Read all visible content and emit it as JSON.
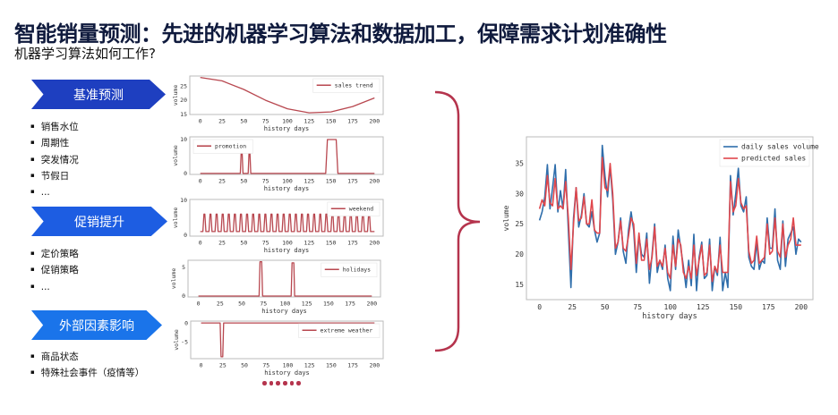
{
  "header": {
    "title": "智能销量预测：先进的机器学习算法和数据加工，保障需求计划准确性",
    "subtitle": "机器学习算法如何工作?"
  },
  "sections": [
    {
      "label": "基准预测",
      "color": "#1e3fc0",
      "bullets": [
        "销售水位",
        "周期性",
        "突发情况",
        "节假日",
        "..."
      ]
    },
    {
      "label": "促销提升",
      "color": "#1d5de2",
      "bullets": [
        "定价策略",
        "促销策略",
        "..."
      ]
    },
    {
      "label": "外部因素影响",
      "color": "#1a74ea",
      "bullets": [
        "商品状态",
        "特殊社会事件（疫情等）"
      ]
    }
  ],
  "accent_color": "#b5344d",
  "pagination_dots": 6,
  "chart_data": [
    {
      "type": "line",
      "xlabel": "history days",
      "ylabel": "volume",
      "xlim": [
        -12,
        210
      ],
      "ylim": [
        15,
        28.5
      ],
      "xticks": [
        0,
        25,
        50,
        75,
        100,
        125,
        150,
        175,
        200
      ],
      "yticks": [
        15,
        20,
        25
      ],
      "legend": "top-right",
      "grid": false,
      "series": [
        {
          "name": "sales trend",
          "color": "#b8474f",
          "x": [
            0,
            25,
            50,
            75,
            100,
            125,
            150,
            175,
            200
          ],
          "y": [
            28,
            26.8,
            23.8,
            20,
            17,
            15.6,
            15.9,
            17.8,
            20.8
          ]
        }
      ]
    },
    {
      "type": "line",
      "xlabel": "history days",
      "ylabel": "volume",
      "xlim": [
        -12,
        210
      ],
      "ylim": [
        -0.3,
        10.8
      ],
      "xticks": [
        0,
        25,
        50,
        75,
        100,
        125,
        150,
        175,
        200
      ],
      "yticks": [
        0,
        10
      ],
      "legend": "top-left",
      "grid": false,
      "series": [
        {
          "name": "promotion",
          "color": "#b8474f",
          "x": [
            0,
            46,
            47,
            48,
            49,
            55,
            56,
            57,
            58,
            144,
            146,
            156,
            158,
            200
          ],
          "y": [
            0,
            0,
            6.5,
            6.5,
            0,
            0,
            6.5,
            6.5,
            0,
            0,
            10,
            10,
            0,
            0
          ]
        }
      ]
    },
    {
      "type": "line",
      "xlabel": "history days",
      "ylabel": "volume",
      "xlim": [
        -12,
        210
      ],
      "ylim": [
        -0.3,
        10.2
      ],
      "xticks": [
        0,
        25,
        50,
        75,
        100,
        125,
        150,
        175,
        200
      ],
      "yticks": [
        0,
        10
      ],
      "legend": "top-right",
      "grid": false,
      "series": [
        {
          "name": "weekend",
          "color": "#b8474f",
          "period_days": 7,
          "first_peak_day": 5,
          "peak": 6,
          "base": 1,
          "x_end": 200
        }
      ]
    },
    {
      "type": "line",
      "xlabel": "history days",
      "ylabel": "volume",
      "xlim": [
        -12,
        210
      ],
      "ylim": [
        -0.15,
        6.25
      ],
      "xticks": [
        0,
        25,
        50,
        75,
        100,
        125,
        150,
        175,
        200
      ],
      "yticks": [
        0,
        5
      ],
      "legend": "top-right",
      "grid": false,
      "series": [
        {
          "name": "holidays",
          "color": "#b8474f",
          "x": [
            0,
            70,
            71,
            73,
            74,
            107,
            108,
            110,
            111,
            200
          ],
          "y": [
            0,
            0,
            6,
            6,
            0,
            0,
            5.8,
            5.8,
            0,
            0
          ]
        }
      ]
    },
    {
      "type": "line",
      "xlabel": "history days",
      "ylabel": "volume",
      "xlim": [
        -12,
        210
      ],
      "ylim": [
        -9.5,
        0.5
      ],
      "xticks": [
        0,
        25,
        50,
        75,
        100,
        125,
        150,
        175,
        200
      ],
      "yticks": [
        0,
        -5
      ],
      "legend": "top-right",
      "grid": false,
      "series": [
        {
          "name": "extreme weather",
          "color": "#b8474f",
          "x": [
            0,
            22,
            23,
            25,
            26,
            200
          ],
          "y": [
            0,
            0,
            -9,
            -9,
            0,
            0
          ]
        }
      ]
    },
    {
      "type": "line",
      "xlabel": "history days",
      "ylabel": "volume",
      "xlim": [
        -10,
        209
      ],
      "ylim": [
        12.5,
        39.4
      ],
      "xticks": [
        0,
        25,
        50,
        75,
        100,
        125,
        150,
        175,
        200
      ],
      "yticks": [
        15,
        20,
        25,
        30,
        35
      ],
      "legend": "top-right",
      "grid": false,
      "x_start": 0,
      "x_step": 2,
      "series": [
        {
          "name": "daily sales volume",
          "color": "#2f6eab",
          "y": [
            25.6,
            27,
            29.5,
            34.8,
            27.5,
            31,
            34.8,
            27,
            30.5,
            27.5,
            34,
            24,
            14.5,
            26,
            31,
            24.5,
            26.5,
            30,
            25,
            24.5,
            27,
            24,
            22,
            23.5,
            38,
            33,
            29.5,
            34.5,
            29,
            20,
            22,
            26,
            20.5,
            18.5,
            24,
            27,
            24,
            17,
            23,
            20,
            19.5,
            23.5,
            15.2,
            20,
            25,
            17,
            19,
            17.5,
            21.5,
            16,
            14,
            23,
            17.5,
            24,
            21,
            18,
            14.5,
            19,
            14.8,
            23.3,
            14,
            19.5,
            22,
            16,
            16.5,
            22.5,
            14,
            18,
            16.5,
            22.8,
            14,
            17,
            14.5,
            33,
            26.5,
            30,
            34.2,
            28,
            27,
            29.5,
            19.5,
            18,
            17.5,
            22,
            17.5,
            19,
            18.5,
            26,
            21,
            21,
            27.5,
            19,
            17.5,
            25.5,
            18,
            22.5,
            23.5,
            24.5,
            20,
            22.5,
            22
          ]
        },
        {
          "name": "predicted sales",
          "color": "#e0474c",
          "y": [
            27.5,
            29,
            28,
            33,
            28.5,
            28,
            32.5,
            27.5,
            28,
            27.5,
            32,
            26,
            17.5,
            25,
            31,
            25.5,
            26,
            29.5,
            25,
            25,
            29,
            24,
            23.5,
            23.5,
            36,
            31,
            30.5,
            35,
            30,
            21,
            22,
            25.5,
            21,
            20.5,
            23,
            26,
            25,
            18.5,
            23.5,
            19,
            19,
            22.5,
            17.5,
            19.5,
            24.5,
            18,
            19,
            18,
            21,
            17,
            16,
            21.5,
            18,
            22.5,
            21.5,
            17,
            16,
            18,
            16,
            21.5,
            16.5,
            19,
            21.5,
            16.5,
            17,
            21.5,
            15.5,
            18,
            17,
            21.5,
            17,
            17,
            17,
            32,
            27,
            28,
            32.5,
            28.5,
            27.5,
            28,
            20.5,
            18.5,
            19,
            23,
            18.5,
            19,
            19.5,
            25,
            20,
            20.5,
            26,
            20.5,
            19.5,
            25,
            19.5,
            21.5,
            22.5,
            26,
            21.5,
            21.5,
            21.5
          ]
        }
      ]
    }
  ]
}
